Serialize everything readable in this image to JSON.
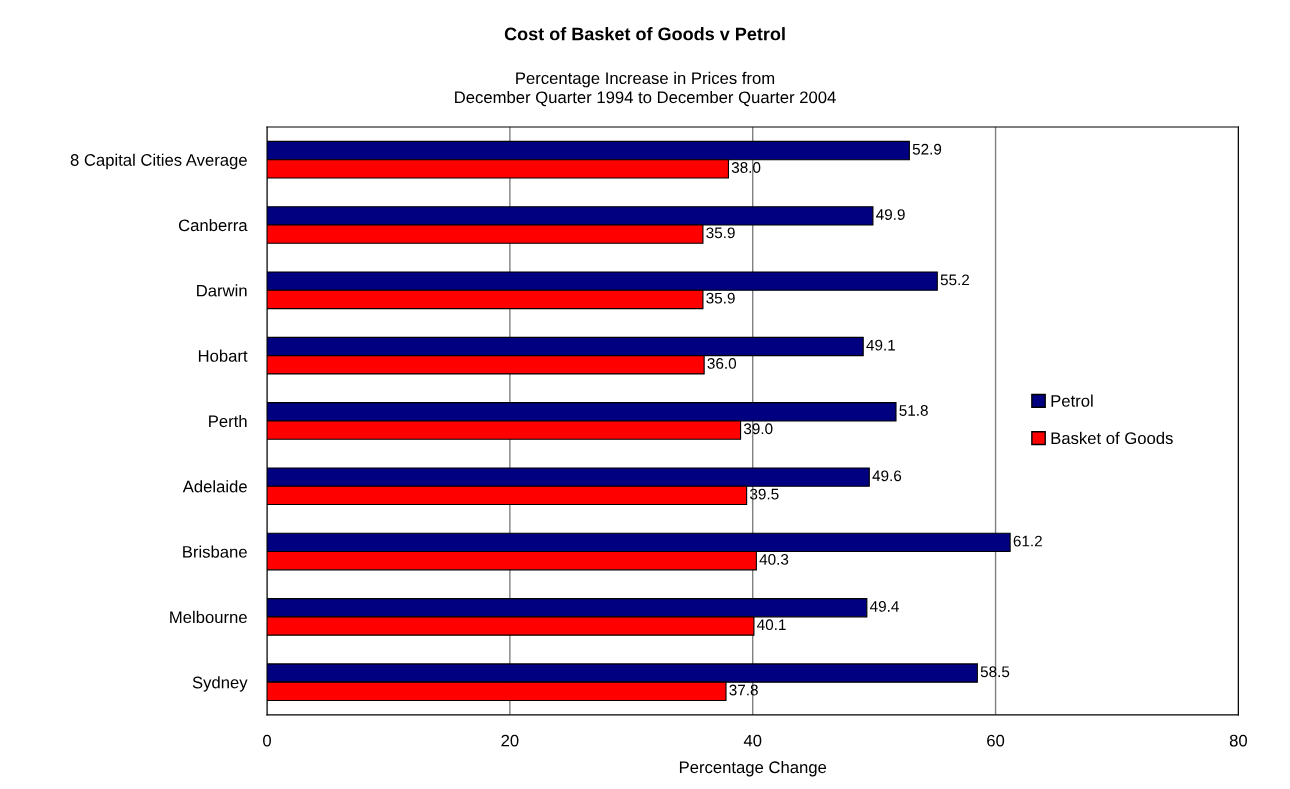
{
  "chart_data": {
    "type": "bar",
    "orientation": "horizontal",
    "title": "Cost of Basket of Goods v Petrol",
    "subtitle": "Percentage Increase in Prices from\nDecember Quarter 1994 to December Quarter 2004",
    "xlabel": "Percentage Change",
    "categories": [
      "8 Capital Cities Average",
      "Canberra",
      "Darwin",
      "Hobart",
      "Perth",
      "Adelaide",
      "Brisbane",
      "Melbourne",
      "Sydney"
    ],
    "series": [
      {
        "name": "Petrol",
        "color": "#000080",
        "values": [
          52.9,
          49.9,
          55.2,
          49.1,
          51.8,
          49.6,
          61.2,
          49.4,
          58.5
        ],
        "value_labels": [
          "52.9",
          "49.9",
          "55.2",
          "49.1",
          "51.8",
          "49.6",
          "61.2",
          "49.4",
          "58.5"
        ]
      },
      {
        "name": "Basket of Goods",
        "color": "#ff0000",
        "values": [
          38.0,
          35.9,
          35.9,
          36.0,
          39.0,
          39.5,
          40.3,
          40.1,
          37.8
        ],
        "value_labels": [
          "38.0",
          "35.9",
          "35.9",
          "36.0",
          "39.0",
          "39.5",
          "40.3",
          "40.1",
          "37.8"
        ]
      }
    ],
    "xlim": [
      0,
      80
    ],
    "xticks": [
      0,
      20,
      40,
      60,
      80
    ],
    "grid": "x",
    "legend": "right"
  }
}
